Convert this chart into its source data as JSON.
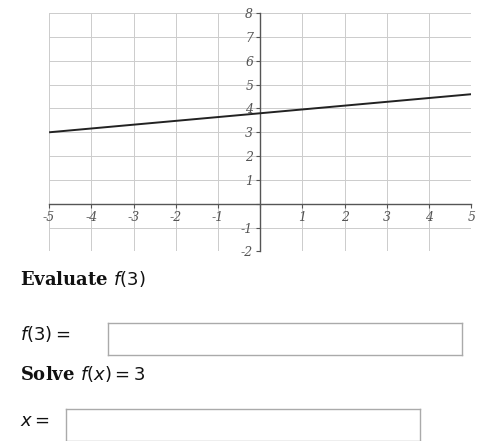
{
  "xlim": [
    -5,
    5
  ],
  "ylim": [
    -2,
    8
  ],
  "xticks": [
    -5,
    -4,
    -3,
    -2,
    -1,
    0,
    1,
    2,
    3,
    4,
    5
  ],
  "yticks": [
    -2,
    -1,
    0,
    1,
    2,
    3,
    4,
    5,
    6,
    7,
    8
  ],
  "xtick_labels": [
    "-5",
    "-4",
    "-3",
    "-2",
    "-1",
    "",
    "1",
    "2",
    "3",
    "4",
    "5"
  ],
  "ytick_labels": [
    "-2",
    "-1",
    "",
    "1",
    "2",
    "3",
    "4",
    "5",
    "6",
    "7",
    "8"
  ],
  "line_x": [
    -5,
    5
  ],
  "line_y": [
    3.0,
    4.6
  ],
  "line_color": "#222222",
  "line_width": 1.4,
  "grid_color": "#cccccc",
  "grid_linewidth": 0.7,
  "background_color": "#ffffff",
  "spine_color": "#555555",
  "tick_color": "#555555",
  "evaluate_label": "Evaluate $f(3)$",
  "f3_label": "$f(3)=$",
  "solve_label": "Solve $f(x) = 3$",
  "x_label": "$x=$",
  "label_fontsize": 12,
  "tick_fontsize": 9
}
